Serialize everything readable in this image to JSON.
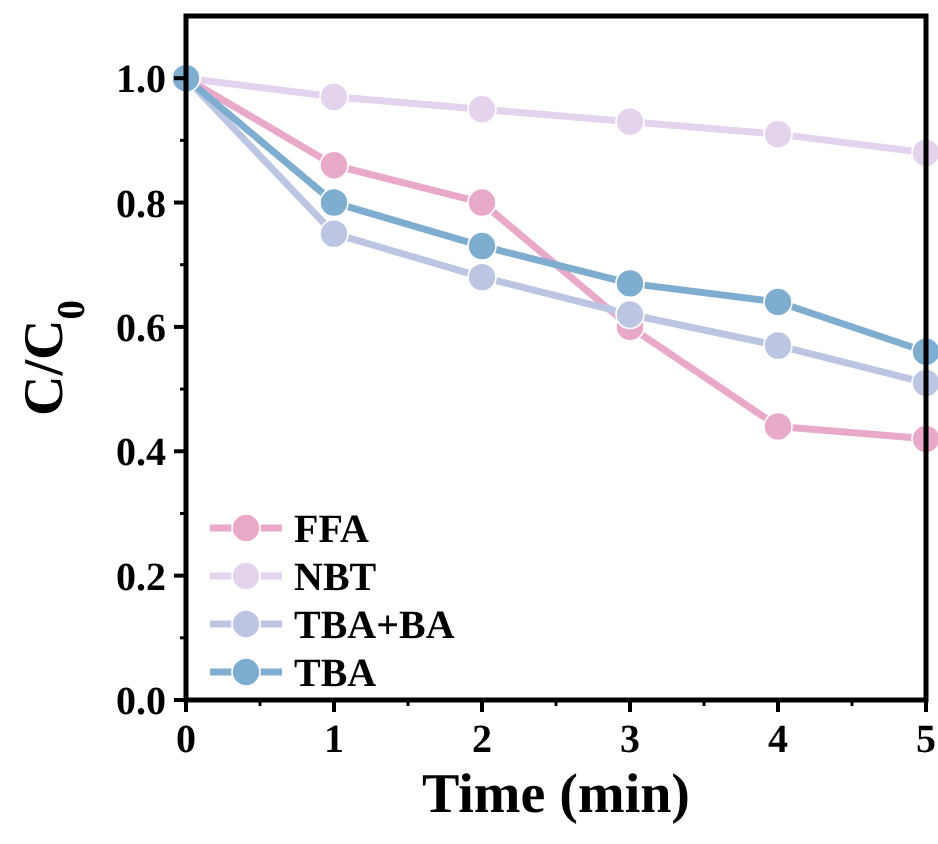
{
  "chart_data": {
    "type": "line",
    "xlabel": "Time (min)",
    "ylabel": "C/C$_{0}$",
    "x": [
      0,
      1,
      2,
      3,
      4,
      5
    ],
    "xlim": [
      0,
      5
    ],
    "xticks": [
      0,
      1,
      2,
      3,
      4,
      5
    ],
    "ylim": [
      0,
      1.1
    ],
    "yticks": [
      {
        "value": 0,
        "label": "0.0"
      },
      0.2,
      0.4,
      0.6,
      0.8,
      {
        "value": 1,
        "label": "1.0"
      }
    ],
    "marker": "circle",
    "legend": "bottom left",
    "grid": false,
    "series": [
      {
        "name": "FFA",
        "color": "#e9a9c9",
        "values": [
          1,
          0.86,
          0.8,
          0.6,
          0.44,
          0.42
        ]
      },
      {
        "name": "NBT",
        "color": "#e3d3ec",
        "values": [
          1,
          0.97,
          0.95,
          0.93,
          0.91,
          0.88
        ]
      },
      {
        "name": "TBA+BA",
        "color": "#bcc6e2",
        "values": [
          1,
          0.75,
          0.68,
          0.62,
          0.57,
          0.51
        ]
      },
      {
        "name": "TBA",
        "color": "#7fadd0",
        "values": [
          1,
          0.8,
          0.73,
          0.67,
          0.64,
          0.56
        ]
      }
    ]
  }
}
